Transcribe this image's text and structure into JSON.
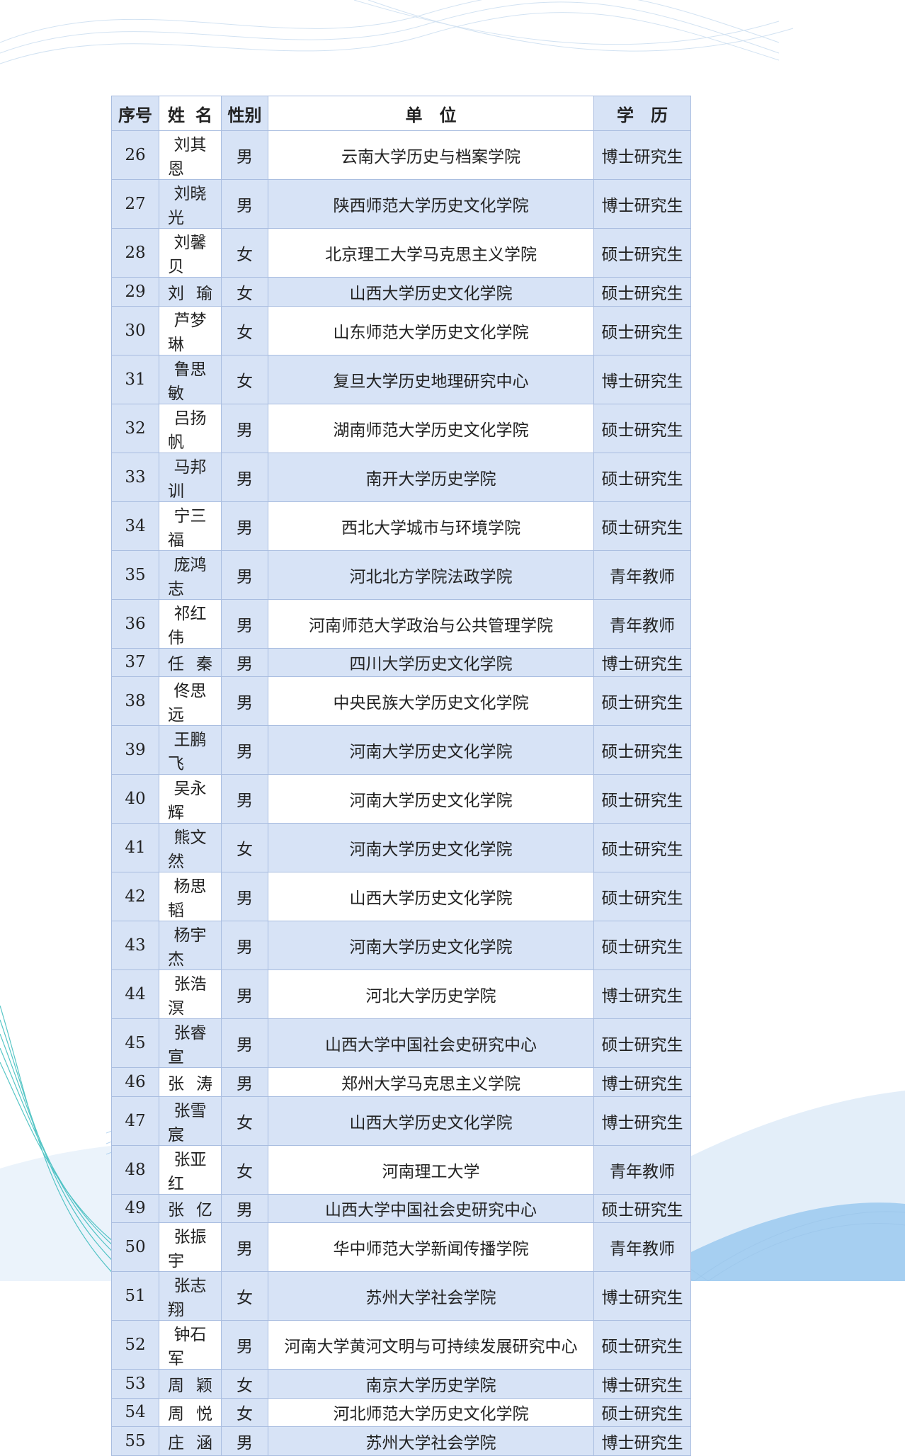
{
  "colors": {
    "cell_blue": "#d7e3f6",
    "border": "#a9bde0",
    "wave_teal": "#1fb3b3",
    "wave_blue": "#5aa6e6"
  },
  "table": {
    "headers": [
      "序号",
      "姓名",
      "性别",
      "单　位",
      "学　历"
    ],
    "rows": [
      [
        "26",
        "刘其恩",
        "男",
        "云南大学历史与档案学院",
        "博士研究生"
      ],
      [
        "27",
        "刘晓光",
        "男",
        "陕西师范大学历史文化学院",
        "博士研究生"
      ],
      [
        "28",
        "刘馨贝",
        "女",
        "北京理工大学马克思主义学院",
        "硕士研究生"
      ],
      [
        "29",
        "刘瑜",
        "女",
        "山西大学历史文化学院",
        "硕士研究生"
      ],
      [
        "30",
        "芦梦琳",
        "女",
        "山东师范大学历史文化学院",
        "硕士研究生"
      ],
      [
        "31",
        "鲁思敏",
        "女",
        "复旦大学历史地理研究中心",
        "博士研究生"
      ],
      [
        "32",
        "吕扬帆",
        "男",
        "湖南师范大学历史文化学院",
        "硕士研究生"
      ],
      [
        "33",
        "马邦训",
        "男",
        "南开大学历史学院",
        "硕士研究生"
      ],
      [
        "34",
        "宁三福",
        "男",
        "西北大学城市与环境学院",
        "硕士研究生"
      ],
      [
        "35",
        "庞鸿志",
        "男",
        "河北北方学院法政学院",
        "青年教师"
      ],
      [
        "36",
        "祁红伟",
        "男",
        "河南师范大学政治与公共管理学院",
        "青年教师"
      ],
      [
        "37",
        "任秦",
        "男",
        "四川大学历史文化学院",
        "博士研究生"
      ],
      [
        "38",
        "佟思远",
        "男",
        "中央民族大学历史文化学院",
        "硕士研究生"
      ],
      [
        "39",
        "王鹏飞",
        "男",
        "河南大学历史文化学院",
        "硕士研究生"
      ],
      [
        "40",
        "吴永辉",
        "男",
        "河南大学历史文化学院",
        "硕士研究生"
      ],
      [
        "41",
        "熊文然",
        "女",
        "河南大学历史文化学院",
        "硕士研究生"
      ],
      [
        "42",
        "杨思韬",
        "男",
        "山西大学历史文化学院",
        "硕士研究生"
      ],
      [
        "43",
        "杨宇杰",
        "男",
        "河南大学历史文化学院",
        "硕士研究生"
      ],
      [
        "44",
        "张浩溟",
        "男",
        "河北大学历史学院",
        "博士研究生"
      ],
      [
        "45",
        "张睿宣",
        "男",
        "山西大学中国社会史研究中心",
        "硕士研究生"
      ],
      [
        "46",
        "张涛",
        "男",
        "郑州大学马克思主义学院",
        "博士研究生"
      ],
      [
        "47",
        "张雪宸",
        "女",
        "山西大学历史文化学院",
        "博士研究生"
      ],
      [
        "48",
        "张亚红",
        "女",
        "河南理工大学",
        "青年教师"
      ],
      [
        "49",
        "张亿",
        "男",
        "山西大学中国社会史研究中心",
        "硕士研究生"
      ],
      [
        "50",
        "张振宇",
        "男",
        "华中师范大学新闻传播学院",
        "青年教师"
      ],
      [
        "51",
        "张志翔",
        "女",
        "苏州大学社会学院",
        "博士研究生"
      ],
      [
        "52",
        "钟石军",
        "男",
        "河南大学黄河文明与可持续发展研究中心",
        "硕士研究生"
      ],
      [
        "53",
        "周颖",
        "女",
        "南京大学历史学院",
        "博士研究生"
      ],
      [
        "54",
        "周悦",
        "女",
        "河北师范大学历史文化学院",
        "硕士研究生"
      ],
      [
        "55",
        "庄涵",
        "男",
        "苏州大学社会学院",
        "博士研究生"
      ]
    ]
  }
}
